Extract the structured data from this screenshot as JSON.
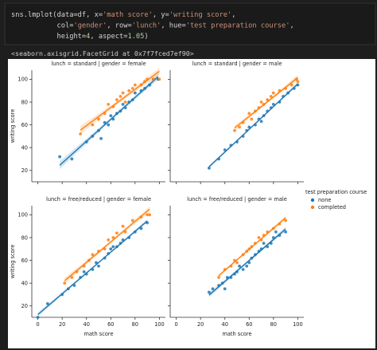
{
  "code": {
    "lines": [
      [
        {
          "text": "sns.lmplot(data=df, x=",
          "color": "#d4d4d4"
        },
        {
          "text": "'math score'",
          "color": "#ce9178"
        },
        {
          "text": ", y=",
          "color": "#d4d4d4"
        },
        {
          "text": "'writing score'",
          "color": "#ce9178"
        },
        {
          "text": ",",
          "color": "#d4d4d4"
        }
      ],
      [
        {
          "text": "           col=",
          "color": "#d4d4d4"
        },
        {
          "text": "'gender'",
          "color": "#ce9178"
        },
        {
          "text": ", row=",
          "color": "#d4d4d4"
        },
        {
          "text": "'lunch'",
          "color": "#ce9178"
        },
        {
          "text": ", hue=",
          "color": "#d4d4d4"
        },
        {
          "text": "'test preparation course'",
          "color": "#ce9178"
        },
        {
          "text": ",",
          "color": "#d4d4d4"
        }
      ],
      [
        {
          "text": "           height=",
          "color": "#d4d4d4"
        },
        {
          "text": "4",
          "color": "#b5cea8"
        },
        {
          "text": ", aspect=",
          "color": "#d4d4d4"
        },
        {
          "text": "1.05",
          "color": "#b5cea8"
        },
        {
          "text": ")",
          "color": "#d4d4d4"
        }
      ]
    ]
  },
  "output": "<seaborn.axisgrid.FacetGrid at 0x7f7fced7ef90>",
  "legend": {
    "title": "test preparation course"
  },
  "chart_data": [
    {
      "type": "scatter",
      "title": "lunch = standard | gender = female",
      "ylabel": "writing score",
      "xlim": [
        -5,
        105
      ],
      "ylim": [
        10,
        108
      ],
      "yticks": [
        20,
        40,
        60,
        80,
        100
      ],
      "series": [
        {
          "name": "none",
          "color": "#1f77b4",
          "x": [
            18,
            28,
            40,
            45,
            50,
            52,
            55,
            58,
            60,
            62,
            65,
            68,
            70,
            72,
            75,
            78,
            80,
            85,
            88,
            92,
            95,
            99
          ],
          "values": [
            32,
            30,
            45,
            50,
            55,
            48,
            62,
            60,
            68,
            65,
            70,
            72,
            78,
            75,
            80,
            82,
            88,
            90,
            92,
            95,
            100,
            100
          ]
        },
        {
          "name": "completed",
          "color": "#ff7f0e",
          "x": [
            35,
            45,
            50,
            55,
            58,
            62,
            65,
            68,
            70,
            72,
            75,
            78,
            80,
            85,
            88,
            90,
            95,
            100
          ],
          "values": [
            52,
            60,
            65,
            70,
            78,
            76,
            82,
            85,
            88,
            80,
            90,
            92,
            95,
            95,
            98,
            100,
            100,
            100
          ]
        }
      ]
    },
    {
      "type": "scatter",
      "title": "lunch = standard | gender = male",
      "xlim": [
        -5,
        105
      ],
      "ylim": [
        10,
        108
      ],
      "series": [
        {
          "name": "none",
          "color": "#1f77b4",
          "x": [
            27,
            35,
            40,
            45,
            50,
            55,
            58,
            60,
            65,
            68,
            70,
            72,
            75,
            78,
            80,
            85,
            88,
            92,
            97,
            100
          ],
          "values": [
            22,
            30,
            38,
            42,
            45,
            50,
            55,
            58,
            60,
            65,
            63,
            68,
            72,
            75,
            78,
            80,
            85,
            88,
            92,
            95
          ]
        },
        {
          "name": "completed",
          "color": "#ff7f0e",
          "x": [
            48,
            52,
            55,
            60,
            62,
            65,
            68,
            70,
            72,
            75,
            78,
            80,
            85,
            90,
            95,
            99,
            100
          ],
          "values": [
            55,
            58,
            62,
            70,
            65,
            72,
            75,
            80,
            78,
            82,
            85,
            88,
            90,
            92,
            95,
            100,
            98
          ]
        }
      ]
    },
    {
      "type": "scatter",
      "title": "lunch = free/reduced | gender = female",
      "xlabel": "math score",
      "ylabel": "writing score",
      "xlim": [
        -5,
        105
      ],
      "ylim": [
        10,
        108
      ],
      "xticks": [
        0,
        20,
        40,
        60,
        80,
        100
      ],
      "yticks": [
        20,
        40,
        60,
        80,
        100
      ],
      "series": [
        {
          "name": "none",
          "color": "#1f77b4",
          "x": [
            0,
            8,
            20,
            25,
            30,
            35,
            38,
            40,
            45,
            48,
            50,
            55,
            58,
            60,
            62,
            65,
            68,
            70,
            75,
            80,
            85,
            90
          ],
          "values": [
            10,
            22,
            30,
            35,
            38,
            45,
            50,
            48,
            52,
            58,
            55,
            62,
            66,
            70,
            72,
            72,
            75,
            78,
            80,
            85,
            88,
            93
          ]
        },
        {
          "name": "completed",
          "color": "#ff7f0e",
          "x": [
            22,
            28,
            32,
            38,
            42,
            45,
            50,
            55,
            58,
            62,
            65,
            70,
            72,
            78,
            85,
            90,
            92
          ],
          "values": [
            40,
            45,
            50,
            55,
            60,
            65,
            68,
            70,
            78,
            80,
            84,
            90,
            85,
            95,
            98,
            100,
            100
          ]
        }
      ]
    },
    {
      "type": "scatter",
      "title": "lunch = free/reduced | gender = male",
      "xlabel": "math score",
      "xlim": [
        -5,
        105
      ],
      "ylim": [
        10,
        108
      ],
      "xticks": [
        0,
        20,
        40,
        60,
        80,
        100
      ],
      "series": [
        {
          "name": "none",
          "color": "#1f77b4",
          "x": [
            27,
            30,
            35,
            38,
            40,
            42,
            45,
            48,
            50,
            52,
            55,
            58,
            60,
            62,
            65,
            68,
            70,
            72,
            75,
            78,
            80,
            82,
            85,
            90
          ],
          "values": [
            32,
            35,
            38,
            40,
            35,
            45,
            45,
            48,
            50,
            55,
            52,
            55,
            58,
            62,
            65,
            68,
            70,
            75,
            72,
            75,
            80,
            85,
            82,
            85
          ]
        },
        {
          "name": "completed",
          "color": "#ff7f0e",
          "x": [
            35,
            40,
            45,
            48,
            50,
            55,
            58,
            60,
            62,
            65,
            68,
            70,
            72,
            75,
            80,
            85,
            90
          ],
          "values": [
            45,
            52,
            55,
            60,
            58,
            65,
            68,
            70,
            72,
            75,
            80,
            78,
            82,
            85,
            88,
            92,
            95
          ]
        }
      ]
    }
  ]
}
